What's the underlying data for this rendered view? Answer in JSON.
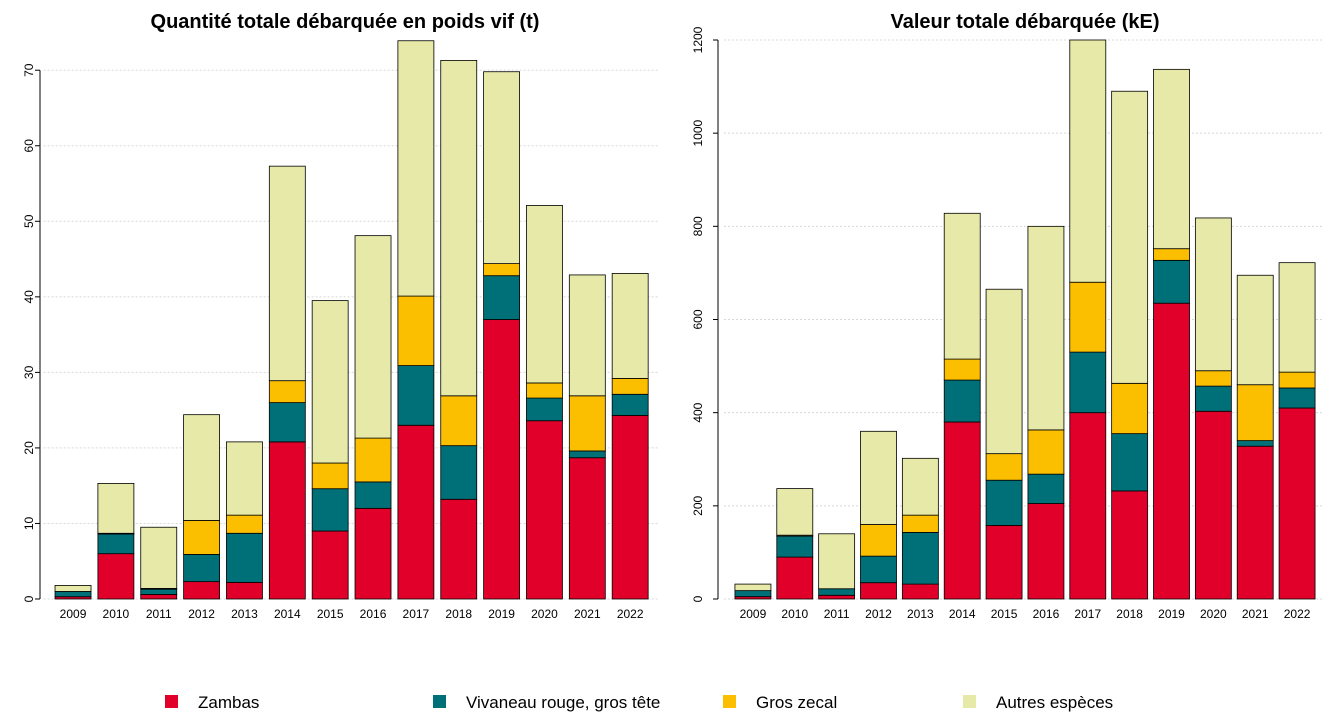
{
  "chart_data": [
    {
      "type": "bar",
      "stacked": true,
      "title": "Quantité totale débarquée en poids vif (t)",
      "categories": [
        "2009",
        "2010",
        "2011",
        "2012",
        "2013",
        "2014",
        "2015",
        "2016",
        "2017",
        "2018",
        "2019",
        "2020",
        "2021",
        "2022"
      ],
      "series": [
        {
          "name": "Zambas",
          "color": "#e0002a",
          "values": [
            0.3,
            6.0,
            0.6,
            2.3,
            2.2,
            20.8,
            9.0,
            12.0,
            23.0,
            13.2,
            37.0,
            23.6,
            18.7,
            24.3
          ]
        },
        {
          "name": "Vivaneau rouge, gros tête",
          "color": "#007078",
          "values": [
            0.7,
            2.6,
            0.7,
            3.6,
            6.5,
            5.2,
            5.6,
            3.5,
            7.9,
            7.1,
            5.8,
            3.0,
            0.9,
            2.8
          ]
        },
        {
          "name": "Gros zecal",
          "color": "#fbbf00",
          "values": [
            0,
            0.1,
            0.1,
            4.5,
            2.4,
            2.9,
            3.4,
            5.8,
            9.2,
            6.6,
            1.6,
            2.0,
            7.3,
            2.1
          ]
        },
        {
          "name": "Autres espèces",
          "color": "#e6e9a8",
          "values": [
            0.8,
            6.6,
            8.1,
            14.0,
            9.7,
            28.4,
            21.5,
            26.8,
            33.8,
            44.4,
            25.4,
            23.5,
            16.0,
            13.9
          ]
        }
      ],
      "ylim": [
        0,
        74
      ],
      "yticks": [
        0,
        10,
        20,
        30,
        40,
        50,
        60,
        70
      ],
      "grid": true
    },
    {
      "type": "bar",
      "stacked": true,
      "title": "Valeur totale débarquée (kE)",
      "categories": [
        "2009",
        "2010",
        "2011",
        "2012",
        "2013",
        "2014",
        "2015",
        "2016",
        "2017",
        "2018",
        "2019",
        "2020",
        "2021",
        "2022"
      ],
      "series": [
        {
          "color": "#e0002a",
          "values": [
            5,
            90,
            8,
            35,
            32,
            380,
            158,
            205,
            400,
            232,
            635,
            403,
            328,
            410
          ]
        },
        {
          "color": "#007078",
          "values": [
            13,
            45,
            14,
            57,
            111,
            90,
            97,
            63,
            130,
            123,
            92,
            54,
            12,
            43
          ]
        },
        {
          "color": "#fbbf00",
          "values": [
            0,
            2,
            0,
            68,
            37,
            45,
            57,
            95,
            150,
            108,
            25,
            33,
            120,
            34
          ]
        },
        {
          "color": "#e6e9a8",
          "values": [
            14,
            100,
            118,
            200,
            122,
            313,
            353,
            437,
            520,
            627,
            385,
            328,
            235,
            235
          ]
        }
      ],
      "ylim": [
        0,
        1200
      ],
      "yticks": [
        0,
        200,
        400,
        600,
        800,
        1000,
        1200
      ],
      "grid": true
    }
  ]
}
